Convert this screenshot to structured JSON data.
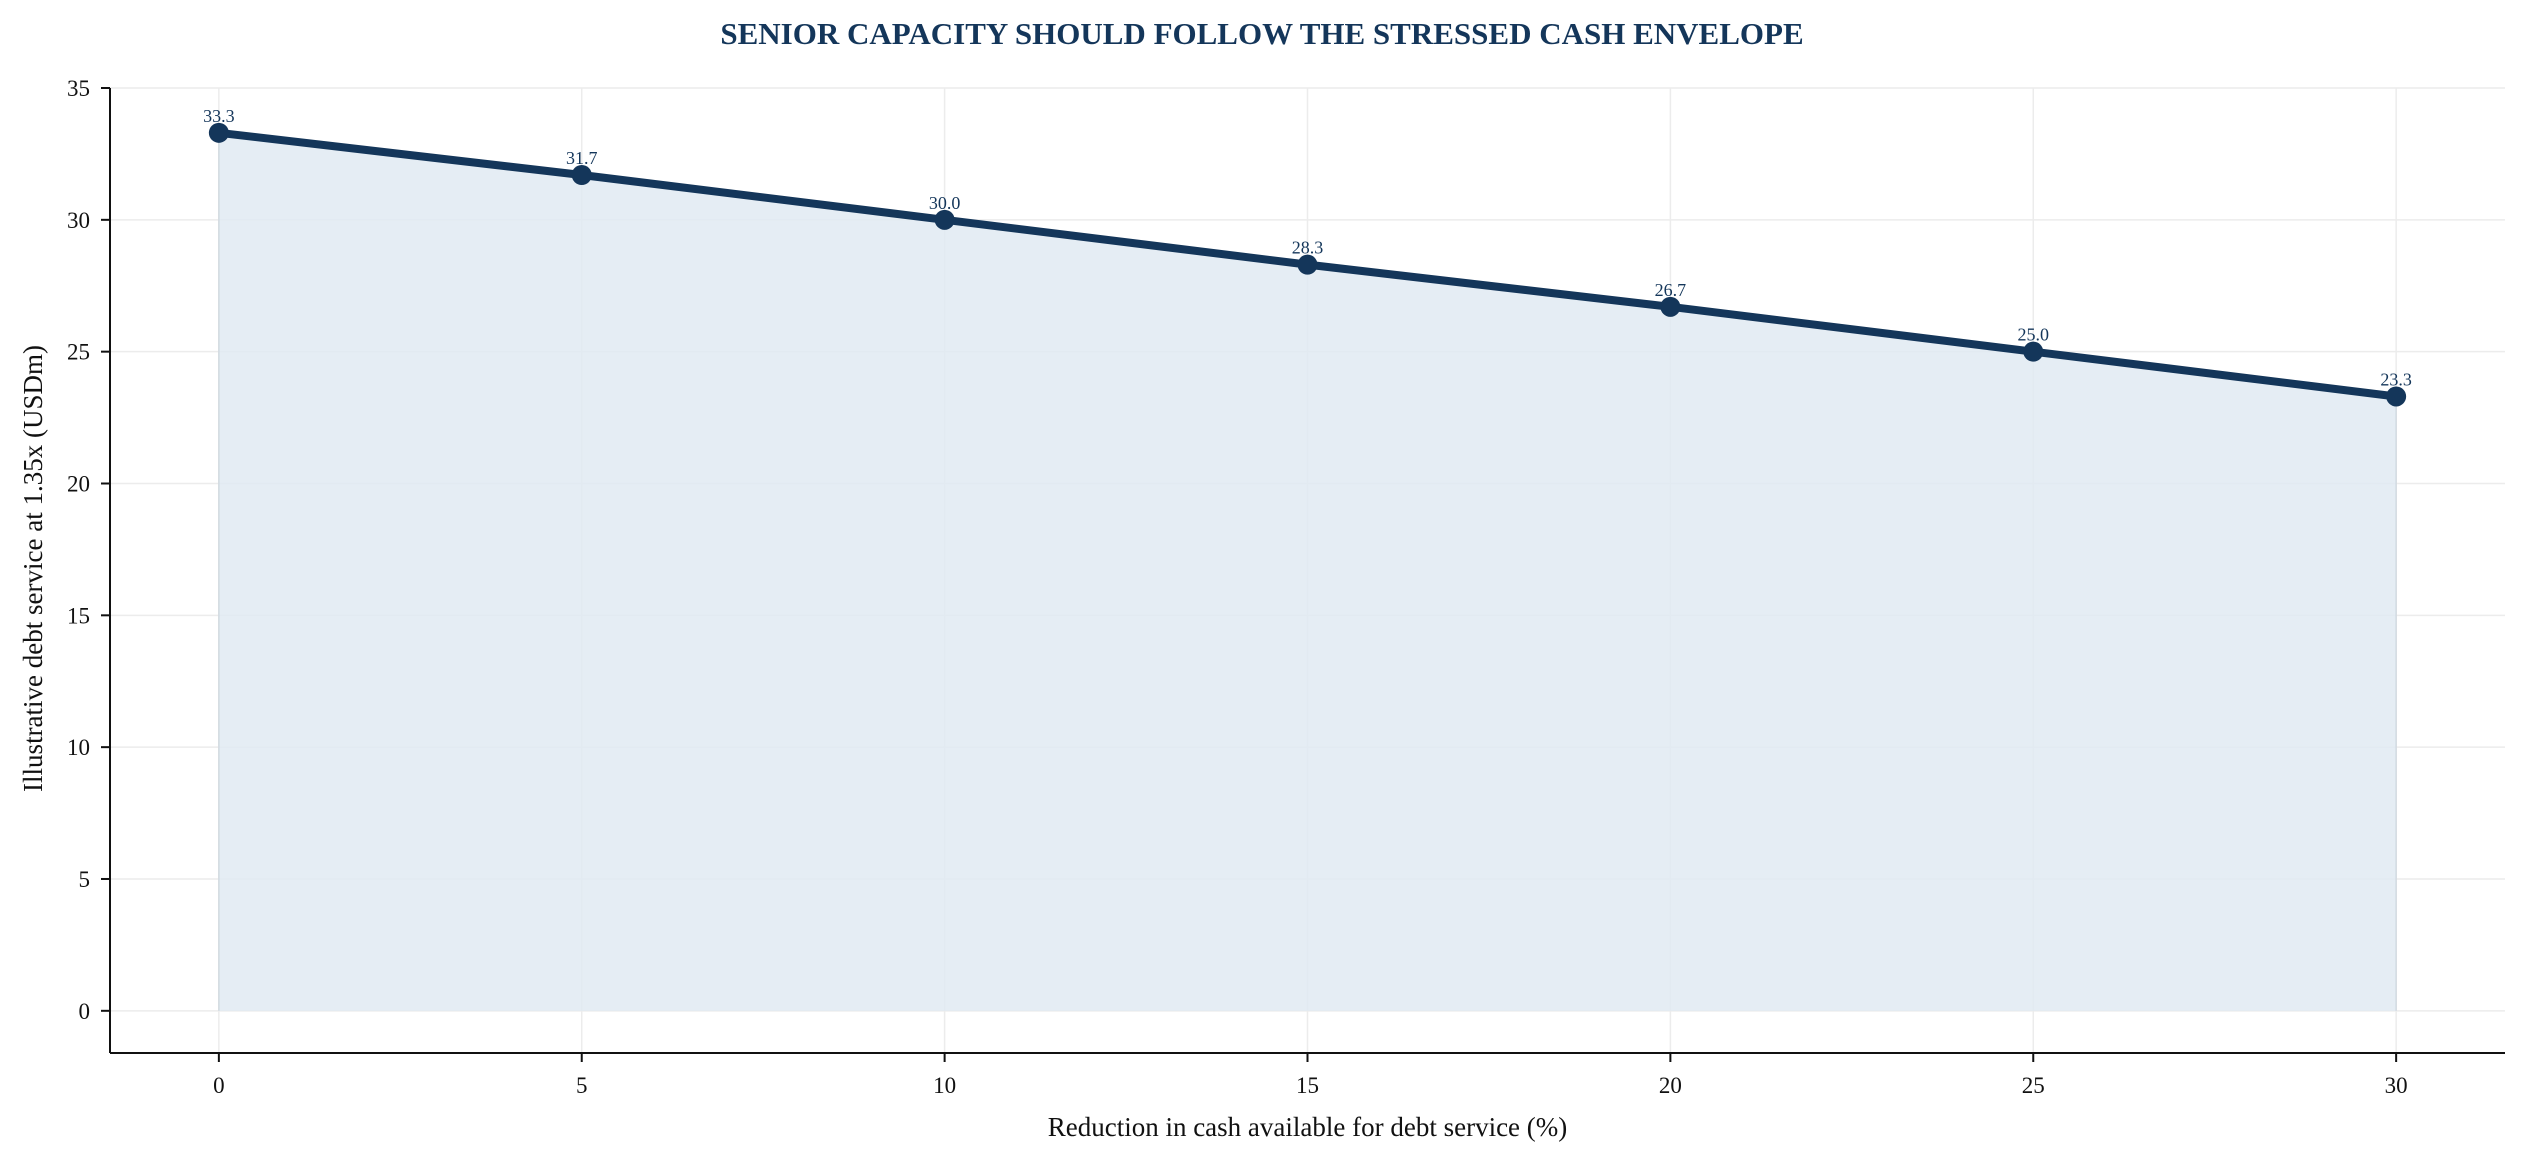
{
  "chart_data": {
    "type": "area",
    "title": "SENIOR CAPACITY SHOULD FOLLOW THE STRESSED CASH ENVELOPE",
    "xlabel": "Reduction in cash available for debt service (%)",
    "ylabel": "Illustrative debt service at 1.35x (USDm)",
    "x": [
      0,
      5,
      10,
      15,
      20,
      25,
      30
    ],
    "series": [
      {
        "values": [
          33.3,
          31.7,
          30.0,
          28.3,
          26.7,
          25.0,
          23.3
        ]
      }
    ],
    "data_labels": [
      "33.3",
      "31.7",
      "30.0",
      "28.3",
      "26.7",
      "25.0",
      "23.3"
    ],
    "xticks": [
      0,
      5,
      10,
      15,
      20,
      25,
      30
    ],
    "yticks": [
      0,
      5,
      10,
      15,
      20,
      25,
      30,
      35
    ],
    "xlim": [
      -1.5,
      31.5
    ],
    "ylim": [
      -1.6,
      35
    ],
    "grid": true,
    "legend": "none",
    "colors": {
      "line": "#14365a",
      "fill": "#e1eaf2",
      "title": "#14365a",
      "grid": "#ececec",
      "axis": "#111111"
    }
  }
}
